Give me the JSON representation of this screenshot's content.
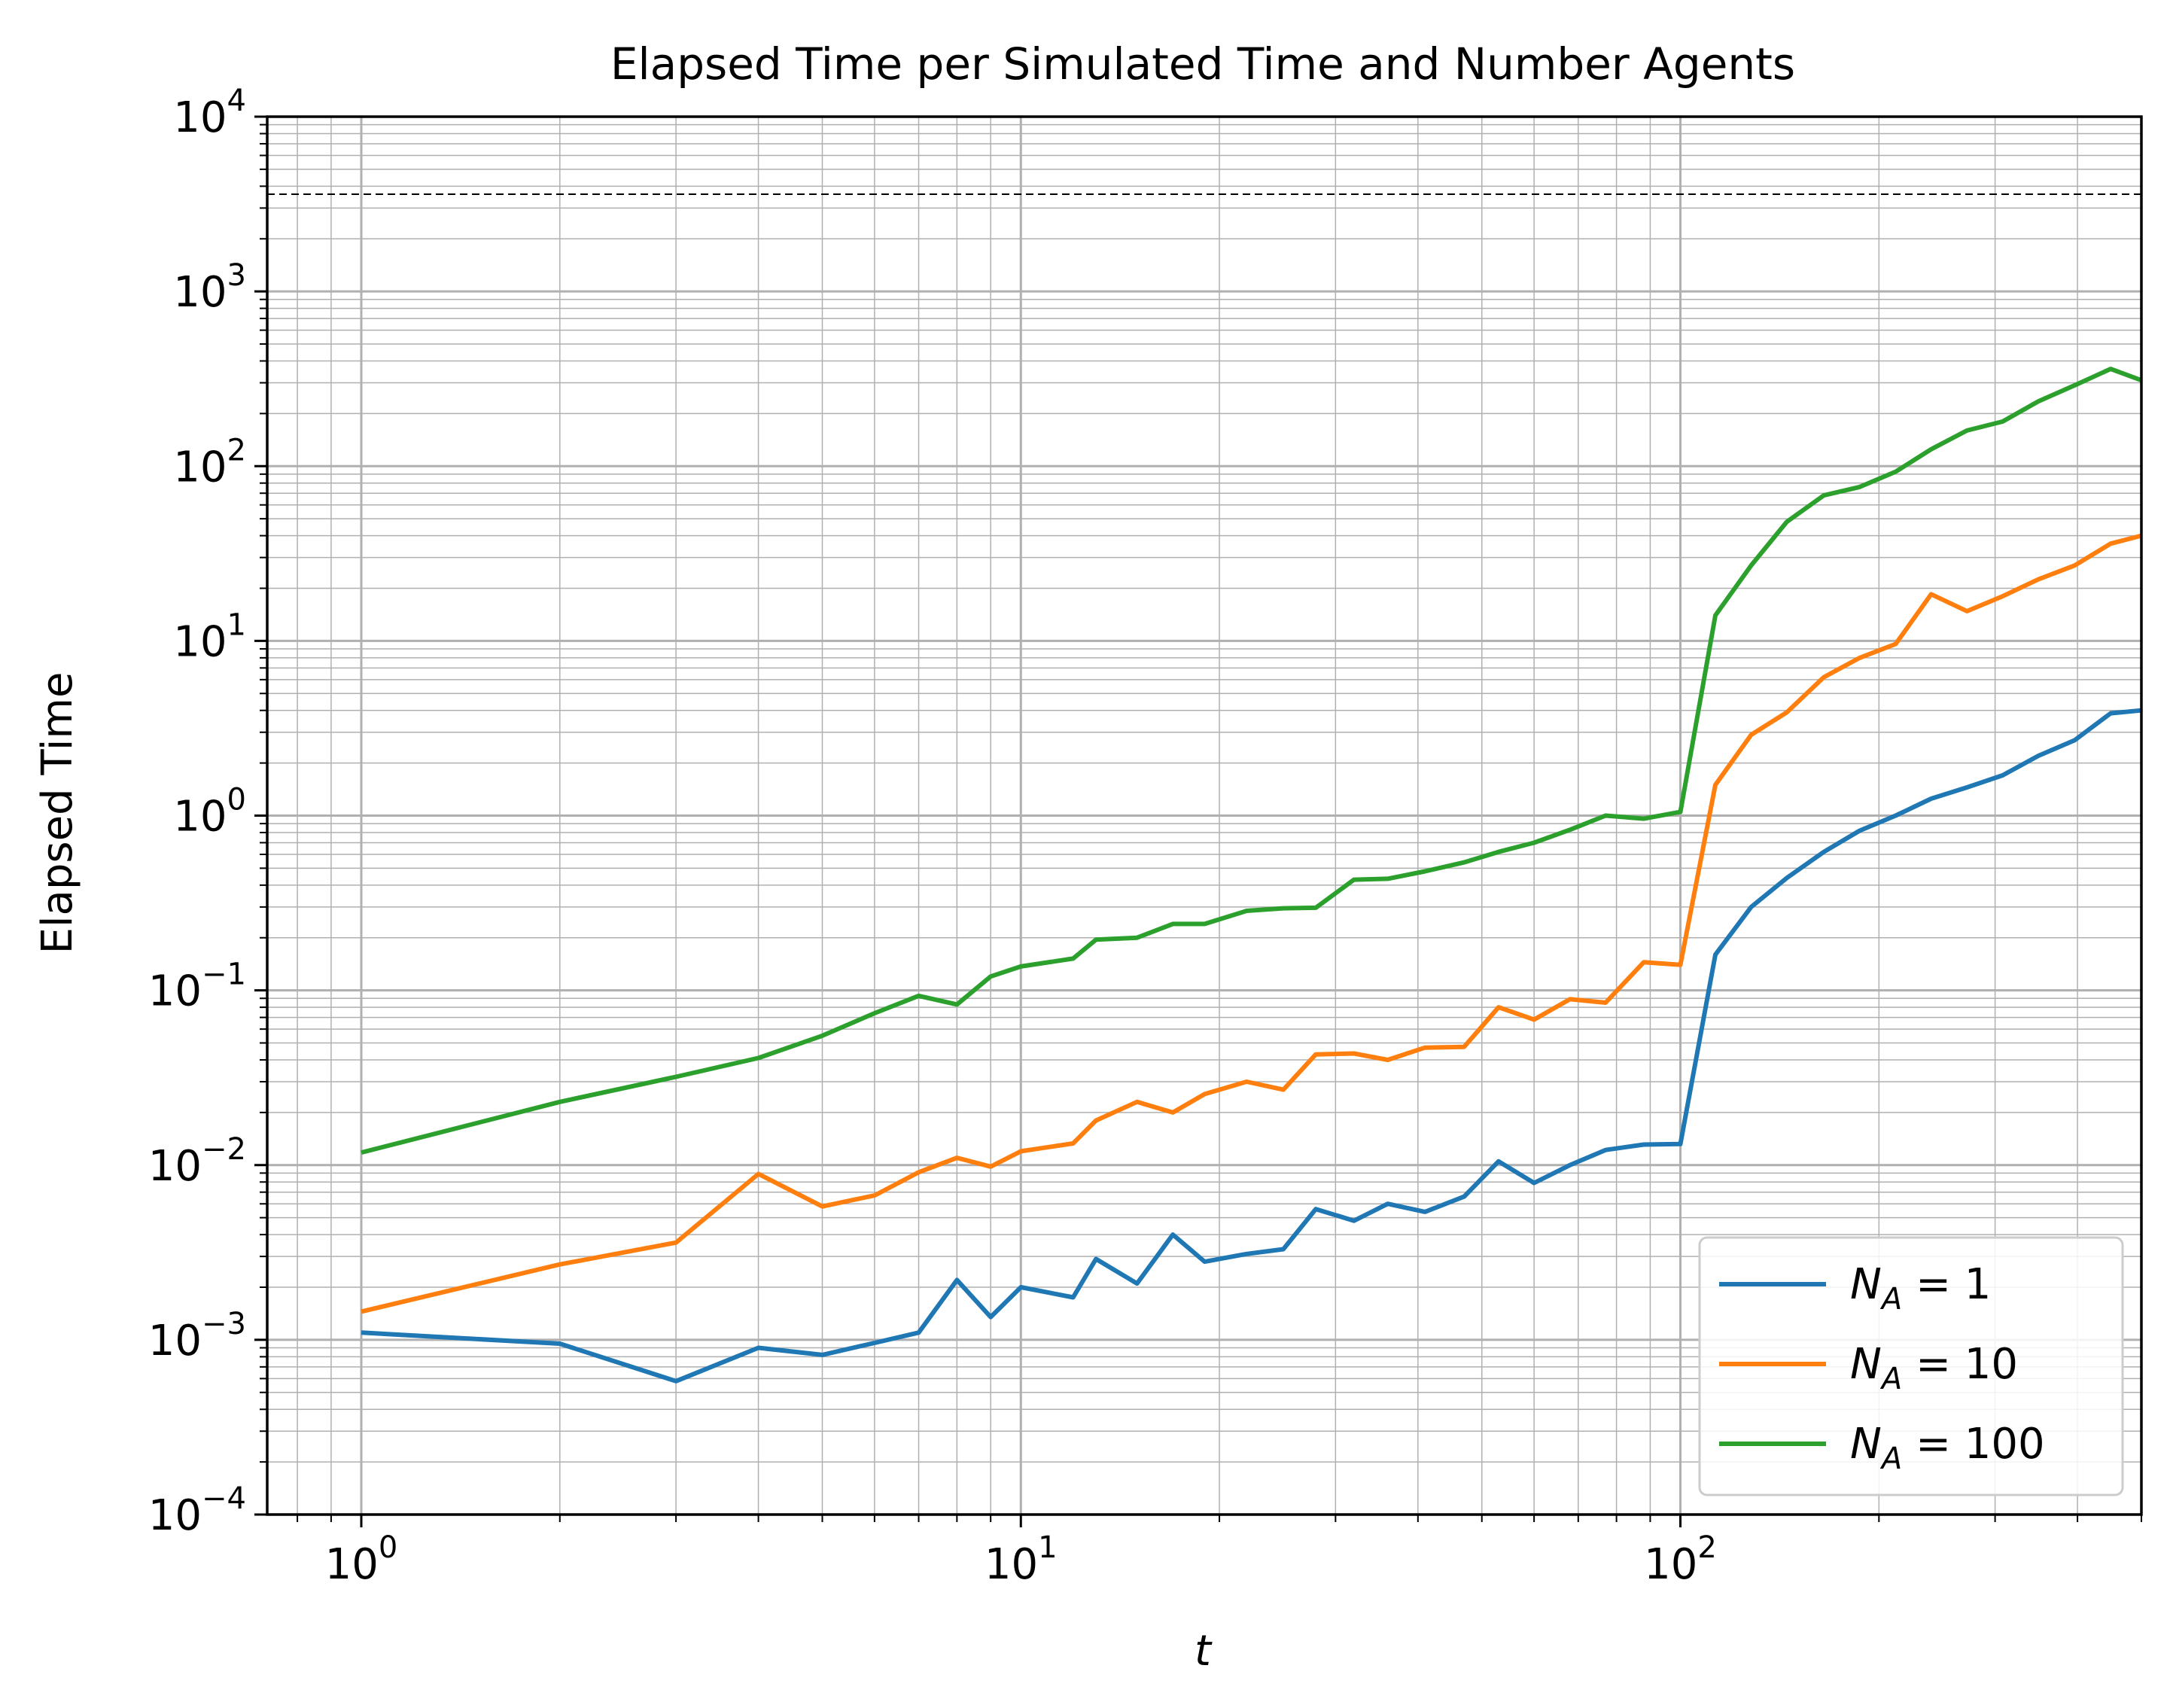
{
  "chart_data": {
    "type": "line",
    "title": "Elapsed Time per Simulated Time and Number Agents",
    "xlabel": "t",
    "ylabel": "Elapsed Time",
    "xscale": "log",
    "yscale": "log",
    "xlim": [
      0.72,
      500
    ],
    "ylim": [
      0.0001,
      10000
    ],
    "grid": "major and minor",
    "legend_position": "lower right",
    "x_ticks": [
      {
        "base": "10",
        "exp": "0"
      },
      {
        "base": "10",
        "exp": "1"
      },
      {
        "base": "10",
        "exp": "2"
      }
    ],
    "y_ticks": [
      {
        "base": "10",
        "exp": "−4"
      },
      {
        "base": "10",
        "exp": "−3"
      },
      {
        "base": "10",
        "exp": "−2"
      },
      {
        "base": "10",
        "exp": "−1"
      },
      {
        "base": "10",
        "exp": "0"
      },
      {
        "base": "10",
        "exp": "1"
      },
      {
        "base": "10",
        "exp": "2"
      },
      {
        "base": "10",
        "exp": "3"
      },
      {
        "base": "10",
        "exp": "4"
      }
    ],
    "reference_line": {
      "y": 3600,
      "style": "dashed",
      "color": "#000000"
    },
    "x": [
      1,
      2,
      3,
      4,
      5,
      6,
      7,
      8,
      9,
      10,
      12,
      13,
      15,
      17,
      19,
      22,
      25,
      28,
      32,
      36,
      41,
      47,
      53,
      60,
      68,
      77,
      88,
      100,
      113,
      128,
      145,
      165,
      187,
      212,
      240,
      272,
      308,
      349,
      396,
      449,
      500
    ],
    "series": [
      {
        "label_var": "N",
        "label_sub": "A",
        "label_value": "1",
        "color": "#1f77b4",
        "values": [
          0.0011,
          0.00095,
          0.00058,
          0.0009,
          0.00082,
          0.00096,
          0.0011,
          0.0022,
          0.00135,
          0.002,
          0.00175,
          0.0029,
          0.0021,
          0.004,
          0.0028,
          0.0031,
          0.0033,
          0.0056,
          0.0048,
          0.006,
          0.0054,
          0.0066,
          0.0105,
          0.0079,
          0.01,
          0.0122,
          0.0131,
          0.0132,
          0.16,
          0.3,
          0.44,
          0.62,
          0.82,
          1.0,
          1.25,
          1.45,
          1.7,
          2.2,
          2.7,
          3.85,
          4.0
        ]
      },
      {
        "label_var": "N",
        "label_sub": "A",
        "label_value": "10",
        "color": "#ff7f0e",
        "values": [
          0.00145,
          0.0027,
          0.0036,
          0.0089,
          0.0058,
          0.0067,
          0.0091,
          0.011,
          0.0098,
          0.012,
          0.0133,
          0.018,
          0.023,
          0.02,
          0.0255,
          0.03,
          0.027,
          0.043,
          0.0435,
          0.04,
          0.047,
          0.0475,
          0.08,
          0.068,
          0.089,
          0.085,
          0.145,
          0.14,
          1.5,
          2.9,
          3.9,
          6.2,
          8.0,
          9.6,
          18.5,
          14.8,
          18.0,
          22.5,
          27.0,
          36.0,
          40.0
        ]
      },
      {
        "label_var": "N",
        "label_sub": "A",
        "label_value": "100",
        "color": "#2ca02c",
        "values": [
          0.0118,
          0.023,
          0.032,
          0.041,
          0.055,
          0.074,
          0.093,
          0.083,
          0.12,
          0.137,
          0.152,
          0.195,
          0.2,
          0.24,
          0.24,
          0.285,
          0.295,
          0.297,
          0.43,
          0.435,
          0.48,
          0.54,
          0.62,
          0.7,
          0.83,
          1.0,
          0.96,
          1.05,
          14.0,
          27.0,
          48.0,
          68.0,
          76.0,
          93.0,
          125.0,
          160.0,
          180.0,
          235.0,
          290.0,
          360.0,
          310.0
        ]
      }
    ]
  }
}
